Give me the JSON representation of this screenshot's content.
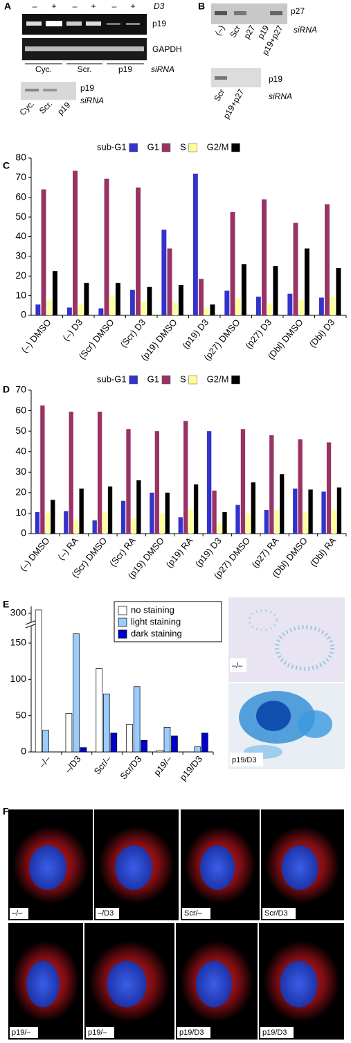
{
  "panel_a": {
    "letter": "A",
    "treatment_signs": [
      "–",
      "+",
      "–",
      "+",
      "–",
      "+"
    ],
    "treatment": "D3",
    "bands": [
      "p19",
      "GAPDH"
    ],
    "groups": [
      "Cyc.",
      "Scr.",
      "p19"
    ],
    "method": "siRNA",
    "blot": {
      "band": "p19",
      "method": "siRNA",
      "lanes": [
        "Cyc.",
        "Scr.",
        "p19"
      ]
    }
  },
  "panel_b": {
    "letter": "B",
    "top": {
      "band": "p27",
      "method": "siRNA",
      "lanes": [
        "(–)",
        "Scr",
        "p27",
        "p19",
        "p19+p27"
      ]
    },
    "bottom": {
      "band": "p19",
      "method": "siRNA",
      "lanes": [
        "Scr",
        "p19+p27"
      ]
    }
  },
  "chart_data": [
    {
      "type": "bar",
      "panel": "C",
      "categories": [
        "(–) DMSO",
        "(–) D3",
        "(Scr) DMSO",
        "(Scr) D3",
        "(p19) DMSO",
        "(p19) D3",
        "(p27) DMSO",
        "(p27) D3",
        "(Dbl) DMSO",
        "(Dbl) D3"
      ],
      "series": [
        {
          "name": "sub-G1",
          "color": "#3333cc",
          "values": [
            5.5,
            4,
            3.5,
            13,
            43.5,
            72,
            12.5,
            9.5,
            11,
            9
          ]
        },
        {
          "name": "G1",
          "color": "#993366",
          "values": [
            64,
            73.5,
            69.5,
            65,
            34,
            18.5,
            52.5,
            59,
            47,
            56.5
          ]
        },
        {
          "name": "S",
          "color": "#ffff99",
          "values": [
            7.5,
            5.5,
            10,
            7,
            6.5,
            3.5,
            8.5,
            6,
            8,
            9.5
          ]
        },
        {
          "name": "G2/M",
          "color": "#000000",
          "values": [
            22.5,
            16.5,
            16.5,
            14.5,
            15.5,
            5.5,
            26,
            25,
            34,
            24
          ]
        }
      ],
      "ylim": [
        0,
        80
      ],
      "yticks": [
        0,
        10,
        20,
        30,
        40,
        50,
        60,
        70,
        80
      ],
      "legend": "top"
    },
    {
      "type": "bar",
      "panel": "D",
      "categories": [
        "(–) DMSO",
        "(–) RA",
        "(Scr) DMSO",
        "(Scr) RA",
        "(p19) DMSO",
        "(p19) RA",
        "(p19) D3",
        "(p27) DMSO",
        "(p27) RA",
        "(Dbl) DMSO",
        "(Dbl) RA"
      ],
      "series": [
        {
          "name": "sub-G1",
          "color": "#3333cc",
          "values": [
            10.5,
            11,
            6.5,
            16,
            20,
            8,
            50,
            14,
            11.5,
            22,
            20.5
          ]
        },
        {
          "name": "G1",
          "color": "#993366",
          "values": [
            62.5,
            59.5,
            59.5,
            51,
            50,
            55,
            21,
            51,
            48,
            46,
            44.5
          ]
        },
        {
          "name": "S",
          "color": "#ffff99",
          "values": [
            10,
            6.5,
            10.5,
            7.5,
            10,
            12,
            5,
            10,
            11.5,
            10.5,
            11.5
          ]
        },
        {
          "name": "G2/M",
          "color": "#000000",
          "values": [
            16.5,
            22,
            23,
            26,
            20,
            24,
            10.5,
            25,
            29,
            21.5,
            22.5
          ]
        }
      ],
      "ylim": [
        0,
        70
      ],
      "yticks": [
        0,
        10,
        20,
        30,
        40,
        50,
        60,
        70
      ],
      "legend": "top"
    },
    {
      "type": "bar",
      "panel": "E",
      "categories": [
        "–/–",
        "–/D3",
        "Scr/–",
        "Scr/D3",
        "p19/–",
        "p19/D3"
      ],
      "series": [
        {
          "name": "no staining",
          "color": "#ffffff",
          "values": [
            305,
            53,
            115,
            38,
            2,
            0
          ]
        },
        {
          "name": "light staining",
          "color": "#99ccff",
          "values": [
            30,
            163,
            80,
            90,
            34,
            7
          ]
        },
        {
          "name": "dark staining",
          "color": "#0000cc",
          "values": [
            0,
            6,
            26,
            16,
            22,
            26
          ]
        }
      ],
      "ylim": [
        0,
        310
      ],
      "axis_break": [
        170,
        290
      ],
      "yticks": [
        0,
        50,
        100,
        150,
        300
      ],
      "legend": "upper right"
    }
  ],
  "panel_e_images": {
    "labels": [
      "–/–",
      "p19/D3"
    ]
  },
  "panel_f": {
    "letter": "F",
    "labels": [
      "–/–",
      "–/D3",
      "Scr/–",
      "Scr/D3",
      "p19/–",
      "p19/–",
      "p19/D3",
      "p19/D3"
    ]
  }
}
